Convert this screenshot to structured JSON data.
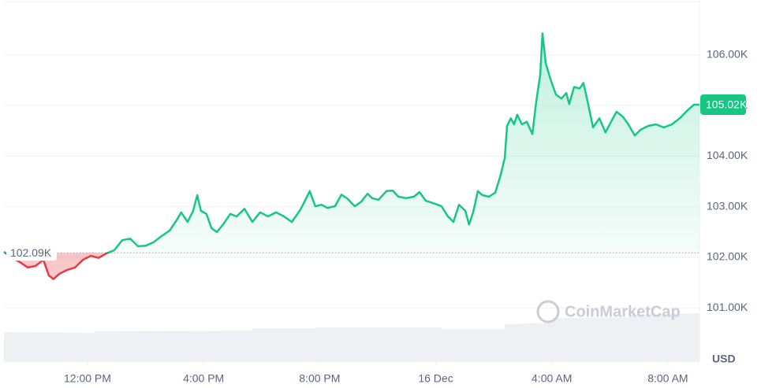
{
  "chart_data": {
    "type": "line",
    "x": [
      9.12,
      9.39,
      9.66,
      9.94,
      10.21,
      10.48,
      10.67,
      10.83,
      11.02,
      11.29,
      11.57,
      11.84,
      12.11,
      12.38,
      12.65,
      12.92,
      13.2,
      13.47,
      13.74,
      14.01,
      14.28,
      14.55,
      14.83,
      15.1,
      15.23,
      15.45,
      15.64,
      15.78,
      15.91,
      16.1,
      16.27,
      16.46,
      16.67,
      16.92,
      17.14,
      17.41,
      17.68,
      17.95,
      18.22,
      18.5,
      18.77,
      19.04,
      19.31,
      19.45,
      19.66,
      19.85,
      20.07,
      20.26,
      20.53,
      20.75,
      20.94,
      21.21,
      21.43,
      21.65,
      21.81,
      22.03,
      22.3,
      22.52,
      22.71,
      22.98,
      23.25,
      23.44,
      23.66,
      23.93,
      24.2,
      24.42,
      24.61,
      24.8,
      25.02,
      25.15,
      25.29,
      25.45,
      25.61,
      25.83,
      26.05,
      26.24,
      26.38,
      26.46,
      26.59,
      26.7,
      26.81,
      26.97,
      27.14,
      27.33,
      27.46,
      27.6,
      27.68,
      27.79,
      27.95,
      28.14,
      28.33,
      28.5,
      28.6,
      28.77,
      28.96,
      29.09,
      29.23,
      29.42,
      29.64,
      29.85,
      30.04,
      30.23,
      30.45,
      30.64,
      30.86,
      31.05,
      31.32,
      31.59,
      31.86,
      32.14,
      32.41,
      32.68,
      32.9,
      33.09
    ],
    "values": [
      102110,
      101990,
      101910,
      101800,
      101830,
      101950,
      101640,
      101570,
      101670,
      101750,
      101800,
      101950,
      102030,
      101990,
      102080,
      102140,
      102340,
      102370,
      102220,
      102230,
      102300,
      102420,
      102530,
      102760,
      102890,
      102700,
      102920,
      103230,
      102920,
      102860,
      102580,
      102500,
      102650,
      102860,
      102810,
      102960,
      102700,
      102890,
      102810,
      102890,
      102810,
      102700,
      102920,
      103070,
      103310,
      103010,
      103040,
      102980,
      103010,
      103240,
      103170,
      103010,
      103100,
      103260,
      103170,
      103140,
      103310,
      103320,
      103200,
      103170,
      103200,
      103290,
      103120,
      103070,
      103010,
      102810,
      102700,
      103040,
      102920,
      102650,
      102890,
      103310,
      103230,
      103200,
      103280,
      103630,
      103970,
      104600,
      104750,
      104630,
      104820,
      104630,
      104680,
      104440,
      105060,
      105610,
      106430,
      105840,
      105530,
      105220,
      105140,
      105250,
      105030,
      105370,
      105340,
      105450,
      105090,
      104570,
      104750,
      104470,
      104680,
      104880,
      104780,
      104630,
      104410,
      104520,
      104600,
      104630,
      104570,
      104630,
      104750,
      104910,
      105020,
      105020
    ],
    "xlim": [
      9.12,
      33.09
    ],
    "xticks": [
      {
        "value": 12,
        "label": "12:00 PM"
      },
      {
        "value": 16,
        "label": "4:00 PM"
      },
      {
        "value": 20,
        "label": "8:00 PM"
      },
      {
        "value": 24,
        "label": "16 Dec"
      },
      {
        "value": 28,
        "label": "4:00 AM"
      },
      {
        "value": 32,
        "label": "8:00 AM"
      }
    ],
    "ylim": [
      99930,
      107090
    ],
    "yticks": [
      {
        "value": 101000,
        "label": "101.00K"
      },
      {
        "value": 102000,
        "label": "102.00K"
      },
      {
        "value": 103000,
        "label": "103.00K"
      },
      {
        "value": 104000,
        "label": "104.00K"
      },
      {
        "value": 105000,
        "label": "105.00K"
      },
      {
        "value": 106000,
        "label": "106.00K"
      }
    ],
    "y_label": "USD",
    "baseline": {
      "value": 102090,
      "label": "102.09K"
    },
    "last_price": {
      "value": 105020,
      "label": "105.02K"
    },
    "color_up": "#16c784",
    "color_down": "#ea3943",
    "grid": true,
    "watermark": "CoinMarketCap"
  }
}
